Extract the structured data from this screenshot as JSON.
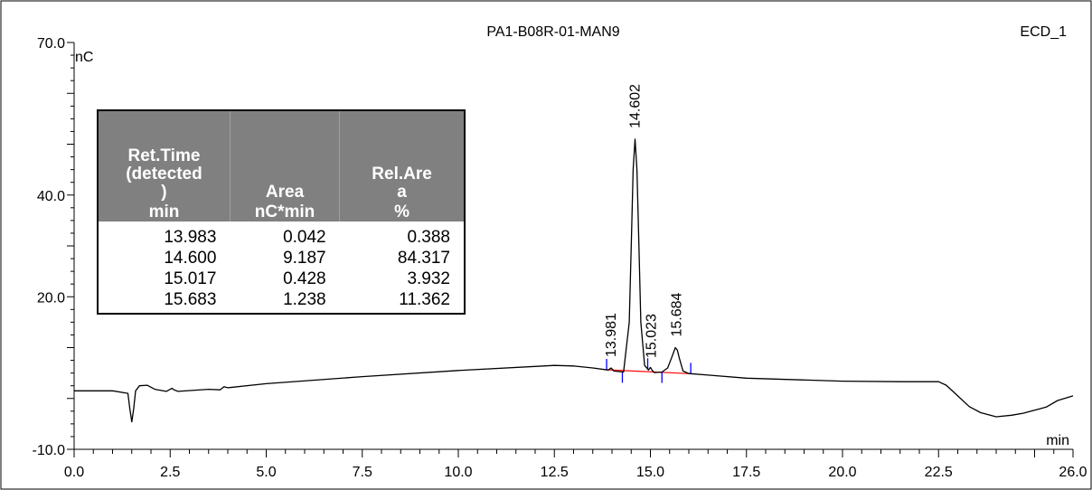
{
  "chart_data": {
    "type": "line",
    "title": "PA1-B08R-01-MAN9",
    "detector": "ECD_1",
    "xlabel": "min",
    "ylabel": "nC",
    "xlim": [
      0.0,
      26.0
    ],
    "ylim": [
      -10.0,
      70.0
    ],
    "x_ticks": [
      "0.0",
      "2.5",
      "5.0",
      "7.5",
      "10.0",
      "12.5",
      "15.0",
      "17.5",
      "20.0",
      "22.5",
      "26.0"
    ],
    "y_ticks": [
      "70.0",
      "40.0",
      "20.0",
      "-10.0"
    ],
    "peak_labels": [
      {
        "label": "13.981",
        "x": 13.981
      },
      {
        "label": "14.602",
        "x": 14.602
      },
      {
        "label": "15.023",
        "x": 15.023
      },
      {
        "label": "15.684",
        "x": 15.684
      }
    ],
    "series": [
      {
        "x": [
          0.0,
          1.0,
          1.4,
          1.45,
          1.5,
          1.55,
          1.6,
          1.7,
          1.9,
          2.1,
          2.4,
          2.5,
          2.55,
          2.6,
          2.7,
          3.5,
          3.8,
          3.85,
          3.9,
          4.0,
          5.0,
          7.5,
          10.0,
          12.5,
          13.0,
          13.5,
          13.9,
          13.98,
          14.05,
          14.3,
          14.45,
          14.5,
          14.55,
          14.6,
          14.65,
          14.7,
          14.75,
          14.85,
          14.95,
          15.0,
          15.05,
          15.1,
          15.3,
          15.45,
          15.55,
          15.65,
          15.7,
          15.75,
          15.85,
          16.0,
          16.5,
          17.5,
          20.0,
          21.5,
          22.5,
          22.7,
          23.0,
          23.3,
          23.6,
          24.0,
          24.4,
          24.7,
          25.0,
          25.3,
          25.6,
          26.0
        ],
        "y": [
          1.5,
          1.5,
          1.0,
          -2.0,
          -4.6,
          -2.0,
          1.5,
          2.5,
          2.6,
          1.8,
          1.4,
          1.8,
          2.0,
          1.7,
          1.4,
          1.8,
          1.7,
          2.0,
          2.3,
          2.1,
          2.9,
          4.3,
          5.5,
          6.5,
          6.4,
          6.0,
          5.6,
          6.0,
          5.4,
          5.2,
          15.0,
          30.0,
          45.0,
          51.0,
          45.0,
          30.0,
          15.0,
          6.5,
          5.6,
          6.1,
          5.5,
          5.1,
          5.2,
          6.0,
          8.0,
          10.0,
          9.5,
          8.0,
          5.4,
          4.9,
          4.6,
          4.0,
          3.4,
          3.3,
          3.3,
          2.6,
          0.5,
          -1.6,
          -2.8,
          -3.6,
          -3.3,
          -2.9,
          -2.3,
          -1.7,
          -0.4,
          0.5
        ]
      }
    ],
    "integration_marks": [
      13.86,
      14.27,
      14.93,
      15.3,
      16.05
    ],
    "table": {
      "headers": [
        {
          "name": "Ret.Time\n(detected\n)",
          "unit": "min"
        },
        {
          "name": "Area",
          "unit": "nC*min"
        },
        {
          "name": "Rel.Are\na",
          "unit": "%"
        }
      ],
      "rows": [
        [
          "13.983",
          "0.042",
          "0.388"
        ],
        [
          "14.600",
          "9.187",
          "84.317"
        ],
        [
          "15.017",
          "0.428",
          "3.932"
        ],
        [
          "15.683",
          "1.238",
          "11.362"
        ]
      ]
    },
    "colors": {
      "trace": "#000000",
      "baseline": "#ff0000",
      "marks": "#0000ff",
      "table_header": "#808080"
    },
    "grid": false
  }
}
